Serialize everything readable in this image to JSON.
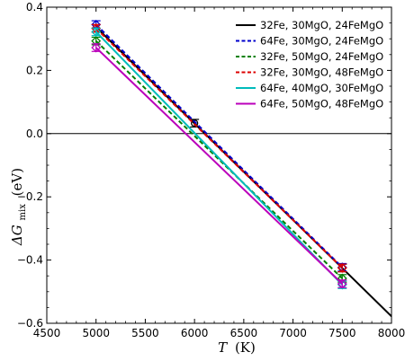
{
  "chart_data": {
    "type": "line",
    "xlabel_var": "T",
    "xlabel_unit": "(K)",
    "ylabel_var": "ΔG",
    "ylabel_sub": "mix",
    "ylabel_unit": "(eV)",
    "xlim": [
      4500,
      8000
    ],
    "ylim": [
      -0.6,
      0.4
    ],
    "xticks": [
      4500,
      5000,
      5500,
      6000,
      6500,
      7000,
      7500,
      8000
    ],
    "yticks": [
      -0.6,
      -0.4,
      -0.2,
      0.0,
      0.2,
      0.4
    ],
    "ytick_labels": [
      "−0.6",
      "−0.4",
      "−0.2",
      "0.0",
      "0.2",
      "0.4"
    ],
    "zero_line": true,
    "legend_position": "top-right",
    "series": [
      {
        "name": "32Fe, 30MgO, 24FeMgO",
        "color": "#000000",
        "dash": "solid",
        "marker": "circle",
        "x": [
          6000,
          7500
        ],
        "y": [
          0.033,
          -0.425
        ],
        "line_x": [
          5000,
          8000
        ],
        "line_y": [
          0.337,
          -0.578
        ],
        "err": 0.012
      },
      {
        "name": "64Fe, 30MgO, 24FeMgO",
        "color": "#0000cc",
        "dash": "dashed",
        "marker": "diamond",
        "x": [
          5000,
          7500
        ],
        "y": [
          0.345,
          -0.423
        ],
        "line_x": [
          5000,
          7500
        ],
        "line_y": [
          0.345,
          -0.423
        ],
        "err": 0.012
      },
      {
        "name": "32Fe, 50MgO, 24FeMgO",
        "color": "#008000",
        "dash": "dashed",
        "marker": "diamond",
        "x": [
          5000,
          7500
        ],
        "y": [
          0.293,
          -0.458
        ],
        "line_x": [
          5000,
          7500
        ],
        "line_y": [
          0.293,
          -0.458
        ],
        "err": 0.012
      },
      {
        "name": "32Fe, 30MgO, 48FeMgO",
        "color": "#dd0000",
        "dash": "dashed",
        "marker": "diamond",
        "x": [
          5000,
          7500
        ],
        "y": [
          0.333,
          -0.425
        ],
        "line_x": [
          5000,
          7500
        ],
        "line_y": [
          0.333,
          -0.425
        ],
        "err": 0.012
      },
      {
        "name": "64Fe, 40MgO, 30FeMgO",
        "color": "#00bbbb",
        "dash": "solid",
        "marker": "diamond",
        "x": [
          5000,
          7500
        ],
        "y": [
          0.322,
          -0.478
        ],
        "line_x": [
          5000,
          7500
        ],
        "line_y": [
          0.322,
          -0.478
        ],
        "err": 0.012
      },
      {
        "name": "64Fe, 50MgO, 48FeMgO",
        "color": "#bb00bb",
        "dash": "solid",
        "marker": "diamond",
        "x": [
          5000,
          7500
        ],
        "y": [
          0.272,
          -0.475
        ],
        "line_x": [
          5000,
          7500
        ],
        "line_y": [
          0.272,
          -0.475
        ],
        "err": 0.012
      }
    ]
  }
}
